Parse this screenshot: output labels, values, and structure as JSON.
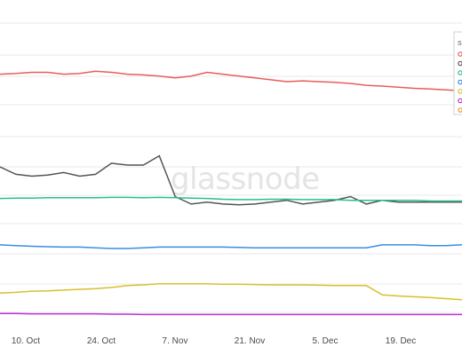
{
  "watermark": "glassnode",
  "chart_data": {
    "type": "line",
    "x_ticks": [
      "10. Oct",
      "24. Oct",
      "7. Nov",
      "21. Nov",
      "5. Dec",
      "19. Dec"
    ],
    "grid": true,
    "legend_placement": "top-right",
    "legend_title": "S",
    "series": [
      {
        "color": "#e85d5d",
        "values": [
          8.5,
          8.52,
          8.55,
          8.55,
          8.5,
          8.52,
          8.58,
          8.55,
          8.5,
          8.48,
          8.45,
          8.4,
          8.45,
          8.55,
          8.5,
          8.45,
          8.4,
          8.35,
          8.3,
          8.32,
          8.3,
          8.28,
          8.25,
          8.2,
          8.18,
          8.15,
          8.12,
          8.1,
          8.08,
          8.05
        ]
      },
      {
        "color": "#555555",
        "values": [
          6.0,
          5.8,
          5.75,
          5.78,
          5.85,
          5.75,
          5.8,
          6.1,
          6.05,
          6.05,
          6.3,
          5.2,
          5.0,
          5.05,
          5.0,
          4.98,
          5.0,
          5.05,
          5.1,
          5.0,
          5.05,
          5.1,
          5.2,
          5.0,
          5.1,
          5.05,
          5.05,
          5.05,
          5.05,
          5.05
        ]
      },
      {
        "color": "#2bbf8a",
        "values": [
          5.15,
          5.16,
          5.16,
          5.17,
          5.17,
          5.17,
          5.17,
          5.18,
          5.18,
          5.17,
          5.18,
          5.17,
          5.16,
          5.15,
          5.13,
          5.12,
          5.12,
          5.13,
          5.13,
          5.12,
          5.12,
          5.12,
          5.1,
          5.1,
          5.1,
          5.1,
          5.1,
          5.08,
          5.08,
          5.08
        ]
      },
      {
        "color": "#3b8de0",
        "values": [
          3.9,
          3.88,
          3.86,
          3.85,
          3.84,
          3.84,
          3.82,
          3.8,
          3.8,
          3.82,
          3.84,
          3.84,
          3.84,
          3.84,
          3.84,
          3.83,
          3.82,
          3.82,
          3.82,
          3.82,
          3.82,
          3.82,
          3.82,
          3.82,
          3.9,
          3.9,
          3.9,
          3.88,
          3.88,
          3.9
        ]
      },
      {
        "color": "#d8c02c",
        "values": [
          2.6,
          2.62,
          2.65,
          2.66,
          2.68,
          2.7,
          2.72,
          2.75,
          2.8,
          2.82,
          2.85,
          2.85,
          2.85,
          2.85,
          2.84,
          2.84,
          2.83,
          2.82,
          2.82,
          2.82,
          2.81,
          2.8,
          2.8,
          2.8,
          2.55,
          2.52,
          2.5,
          2.48,
          2.45,
          2.42
        ]
      },
      {
        "color": "#b833d6",
        "values": [
          2.05,
          2.05,
          2.04,
          2.04,
          2.04,
          2.04,
          2.04,
          2.03,
          2.03,
          2.02,
          2.02,
          2.02,
          2.02,
          2.02,
          2.02,
          2.02,
          2.02,
          2.02,
          2.02,
          2.02,
          2.02,
          2.02,
          2.02,
          2.02,
          2.02,
          2.02,
          2.02,
          2.02,
          2.02,
          2.02
        ]
      },
      {
        "color": "#f39a2b",
        "values": []
      }
    ],
    "ylim": [
      1.6,
      10.5
    ]
  }
}
